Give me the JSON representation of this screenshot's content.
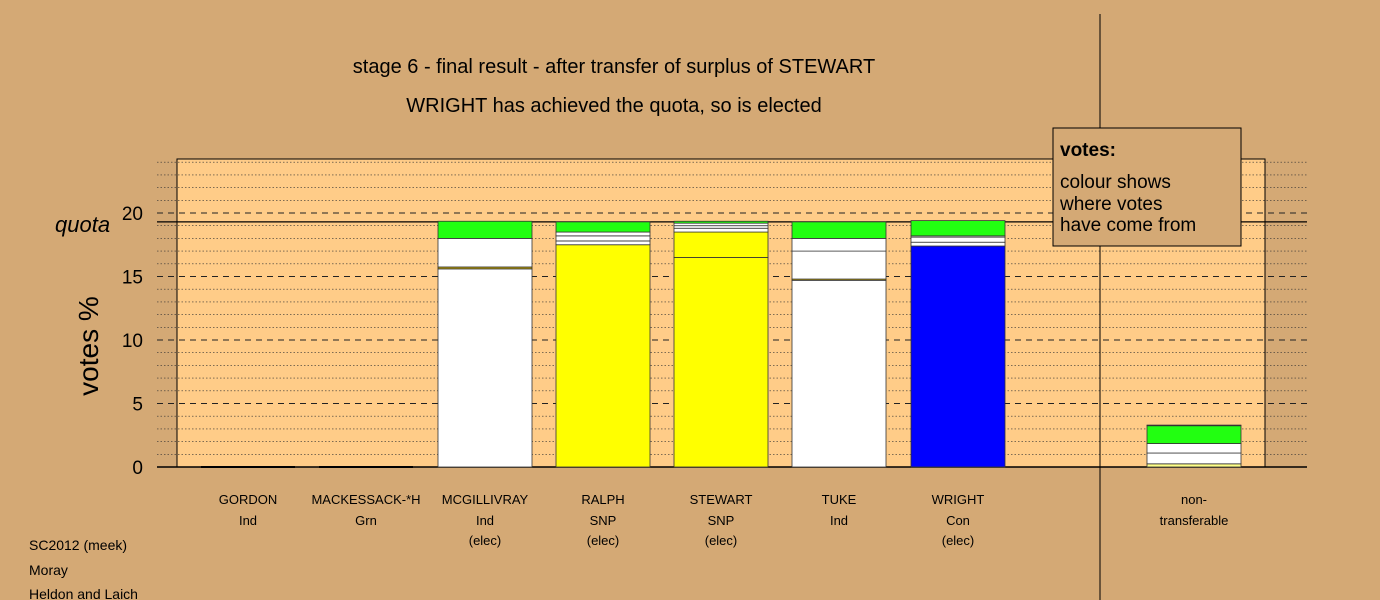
{
  "chart_data": {
    "type": "bar",
    "stacked": true,
    "title": "stage 6 - final result - after transfer of surplus of STEWART",
    "subtitle": "WRIGHT has achieved the quota, so is elected",
    "ylabel": "votes %",
    "ylim": [
      0,
      24
    ],
    "yticks": [
      0,
      5,
      10,
      15,
      20
    ],
    "quota_label": "quota",
    "quota": 19.3,
    "grid": "dashed horizontal",
    "legend": {
      "heading": "votes:",
      "lines": [
        "colour shows",
        "where votes",
        "have come from"
      ],
      "position": "top-right"
    },
    "candidates": [
      {
        "name": "GORDON",
        "party": "Ind",
        "status": "",
        "segments": []
      },
      {
        "name": "MACKESSACK-*H",
        "party": "Grn",
        "status": "",
        "segments": []
      },
      {
        "name": "MCGILLIVRAY",
        "party": "Ind",
        "status": "(elec)",
        "segments": [
          {
            "color": "#ffffff",
            "value": 15.6
          },
          {
            "color": "#c8a800",
            "value": 0.15
          },
          {
            "color": "#ffffff",
            "value": 2.25
          },
          {
            "color": "#22ff11",
            "value": 1.35
          }
        ]
      },
      {
        "name": "RALPH",
        "party": "SNP",
        "status": "(elec)",
        "segments": [
          {
            "color": "#ffff00",
            "value": 17.5
          },
          {
            "color": "#ffffff",
            "value": 0.3
          },
          {
            "color": "#ffffff",
            "value": 0.4
          },
          {
            "color": "#ffffff",
            "value": 0.3
          },
          {
            "color": "#22ff11",
            "value": 0.8
          }
        ]
      },
      {
        "name": "STEWART",
        "party": "SNP",
        "status": "(elec)",
        "segments": [
          {
            "color": "#ffff00",
            "value": 16.5
          },
          {
            "color": "#ffff00",
            "value": 2.0
          },
          {
            "color": "#ffffff",
            "value": 0.3
          },
          {
            "color": "#ffffff",
            "value": 0.2
          },
          {
            "color": "#ffffff",
            "value": 0.2
          },
          {
            "color": "#22ff11",
            "value": 0.15
          }
        ]
      },
      {
        "name": "TUKE",
        "party": "Ind",
        "status": "",
        "segments": [
          {
            "color": "#ffffff",
            "value": 14.7
          },
          {
            "color": "#c8a800",
            "value": 0.1
          },
          {
            "color": "#ffffff",
            "value": 2.2
          },
          {
            "color": "#ffffff",
            "value": 1.0
          },
          {
            "color": "#22ff11",
            "value": 1.3
          }
        ]
      },
      {
        "name": "WRIGHT",
        "party": "Con",
        "status": "(elec)",
        "segments": [
          {
            "color": "#0000ff",
            "value": 17.4
          },
          {
            "color": "#ffffff",
            "value": 0.3
          },
          {
            "color": "#ffffff",
            "value": 0.4
          },
          {
            "color": "#ffffff",
            "value": 0.1
          },
          {
            "color": "#22ff11",
            "value": 1.2
          }
        ]
      },
      {
        "name": "non-",
        "party": "transferable",
        "status": "",
        "segments": [
          {
            "color": "#ffff88",
            "value": 0.25
          },
          {
            "color": "#ffffff",
            "value": 0.85
          },
          {
            "color": "#ffffff",
            "value": 0.75
          },
          {
            "color": "#22ff11",
            "value": 1.4
          },
          {
            "color": "#3aa000",
            "value": 0.05
          }
        ]
      }
    ]
  },
  "footer": [
    "SC2012 (meek)",
    "Moray",
    "Heldon and Laich"
  ]
}
